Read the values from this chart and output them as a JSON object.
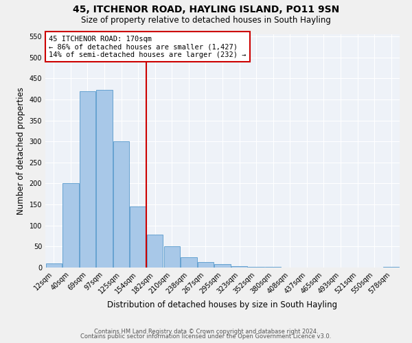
{
  "title": "45, ITCHENOR ROAD, HAYLING ISLAND, PO11 9SN",
  "subtitle": "Size of property relative to detached houses in South Hayling",
  "xlabel": "Distribution of detached houses by size in South Hayling",
  "ylabel": "Number of detached properties",
  "bar_labels": [
    "12sqm",
    "40sqm",
    "69sqm",
    "97sqm",
    "125sqm",
    "154sqm",
    "182sqm",
    "210sqm",
    "238sqm",
    "267sqm",
    "295sqm",
    "323sqm",
    "352sqm",
    "380sqm",
    "408sqm",
    "437sqm",
    "465sqm",
    "493sqm",
    "521sqm",
    "550sqm",
    "578sqm"
  ],
  "bar_values": [
    10,
    200,
    420,
    422,
    300,
    145,
    78,
    50,
    25,
    13,
    8,
    4,
    2,
    2,
    0,
    0,
    0,
    0,
    0,
    0,
    2
  ],
  "bar_color": "#a8c8e8",
  "bar_edge_color": "#5599cc",
  "vline_color": "#cc0000",
  "annotation_title": "45 ITCHENOR ROAD: 170sqm",
  "annotation_line1": "← 86% of detached houses are smaller (1,427)",
  "annotation_line2": "14% of semi-detached houses are larger (232) →",
  "annotation_box_color": "#cc0000",
  "ylim": [
    0,
    555
  ],
  "yticks": [
    0,
    50,
    100,
    150,
    200,
    250,
    300,
    350,
    400,
    450,
    500,
    550
  ],
  "footer_line1": "Contains HM Land Registry data © Crown copyright and database right 2024.",
  "footer_line2": "Contains public sector information licensed under the Open Government Licence v3.0.",
  "bg_color": "#eef2f8",
  "grid_color": "#ffffff",
  "title_fontsize": 10,
  "subtitle_fontsize": 8.5,
  "axis_label_fontsize": 8.5,
  "tick_fontsize": 7,
  "footer_fontsize": 6,
  "annotation_fontsize": 7.5
}
